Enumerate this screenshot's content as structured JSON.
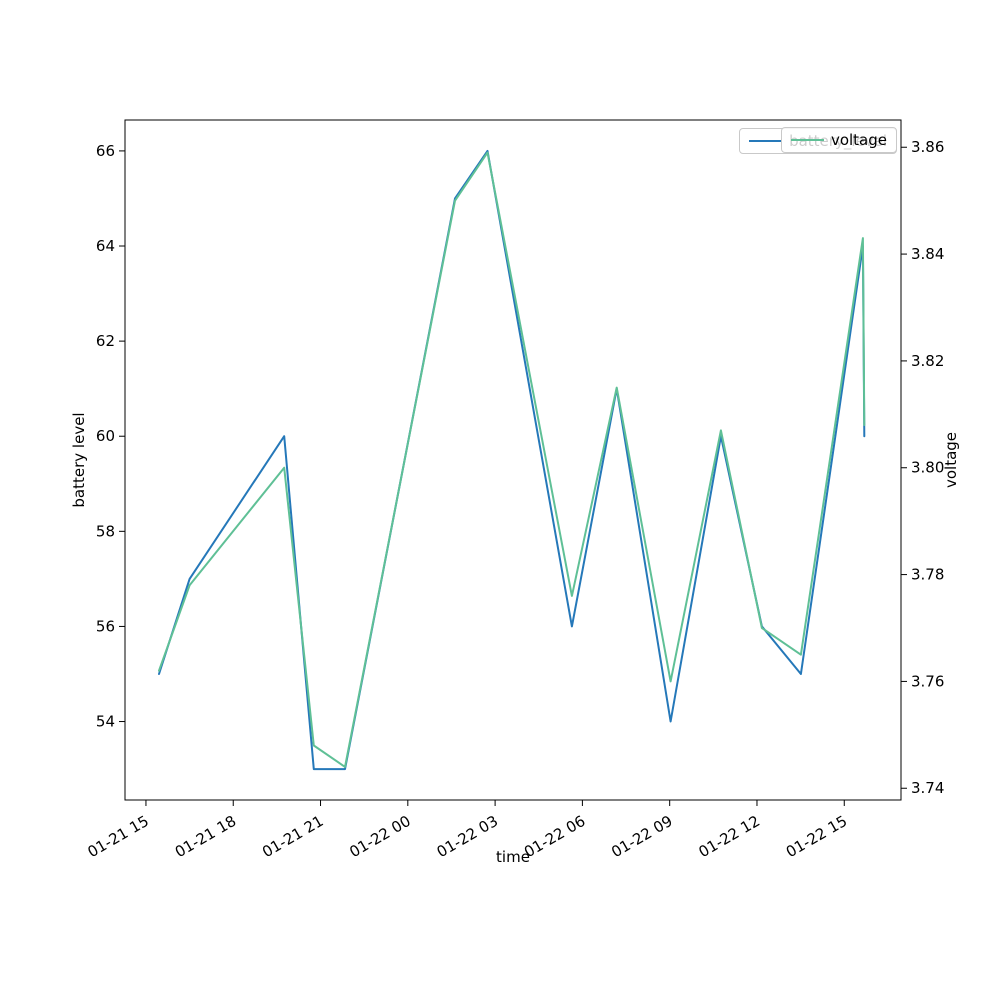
{
  "figure": {
    "background": "#ffffff"
  },
  "legend": {
    "back": {
      "label": "battery_level"
    },
    "front": {
      "label": "voltage"
    }
  },
  "chart_data": {
    "type": "line",
    "title": "",
    "xlabel": "time",
    "ylabel_left": "battery level",
    "ylabel_right": "voltage",
    "grid": false,
    "legend_position": "upper right",
    "xlim_hours": [
      14.28,
      40.95
    ],
    "ylim_left": [
      52.35,
      66.65
    ],
    "ylim_right": [
      3.7378,
      3.8651
    ],
    "x_ticks": [
      {
        "hour": 15,
        "label": "01-21 15"
      },
      {
        "hour": 18,
        "label": "01-21 18"
      },
      {
        "hour": 21,
        "label": "01-21 21"
      },
      {
        "hour": 24,
        "label": "01-22 00"
      },
      {
        "hour": 27,
        "label": "01-22 03"
      },
      {
        "hour": 30,
        "label": "01-22 06"
      },
      {
        "hour": 33,
        "label": "01-22 09"
      },
      {
        "hour": 36,
        "label": "01-22 12"
      },
      {
        "hour": 39,
        "label": "01-22 15"
      }
    ],
    "y_left_ticks": [
      {
        "value": 54,
        "label": "54"
      },
      {
        "value": 56,
        "label": "56"
      },
      {
        "value": 58,
        "label": "58"
      },
      {
        "value": 60,
        "label": "60"
      },
      {
        "value": 62,
        "label": "62"
      },
      {
        "value": 64,
        "label": "64"
      },
      {
        "value": 66,
        "label": "66"
      }
    ],
    "y_right_ticks": [
      {
        "value": 3.74,
        "label": "3.74"
      },
      {
        "value": 3.76,
        "label": "3.76"
      },
      {
        "value": 3.78,
        "label": "3.78"
      },
      {
        "value": 3.8,
        "label": "3.80"
      },
      {
        "value": 3.82,
        "label": "3.82"
      },
      {
        "value": 3.84,
        "label": "3.84"
      },
      {
        "value": 3.86,
        "label": "3.86"
      }
    ],
    "times": [
      "01-21 15:27",
      "01-21 16:30",
      "01-21 19:45",
      "01-21 20:46",
      "01-21 21:50",
      "01-22 01:37",
      "01-22 02:44",
      "01-22 05:38",
      "01-22 07:11",
      "01-22 09:02",
      "01-22 10:46",
      "01-22 12:10",
      "01-22 13:31",
      "01-22 15:38",
      "01-22 15:41"
    ],
    "series": [
      {
        "name": "battery_level",
        "axis": "left",
        "color": "#2578b9",
        "x_hours": [
          15.45,
          16.5,
          19.75,
          20.77,
          21.84,
          25.62,
          26.74,
          29.64,
          31.18,
          33.03,
          34.76,
          36.17,
          37.51,
          39.64,
          39.69
        ],
        "values": [
          55,
          57,
          60,
          53,
          53,
          65,
          66,
          56,
          61,
          54,
          60,
          56,
          55,
          64,
          60
        ]
      },
      {
        "name": "voltage",
        "axis": "right",
        "color": "#5fc096",
        "x_hours": [
          15.45,
          16.5,
          19.75,
          20.77,
          21.84,
          25.62,
          26.74,
          29.64,
          31.18,
          33.03,
          34.76,
          36.17,
          37.51,
          39.64,
          39.69
        ],
        "values": [
          3.762,
          3.778,
          3.8,
          3.748,
          3.744,
          3.85,
          3.859,
          3.776,
          3.815,
          3.76,
          3.807,
          3.77,
          3.765,
          3.843,
          3.808
        ]
      }
    ]
  }
}
